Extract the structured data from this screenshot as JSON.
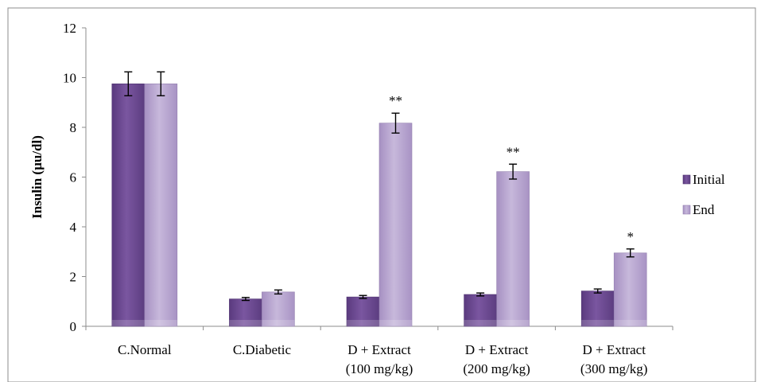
{
  "chart_data": {
    "type": "bar",
    "title": "",
    "xlabel": "",
    "ylabel": "Insulin (µu/dl)",
    "ylim": [
      0,
      12
    ],
    "yticks": [
      0,
      2,
      4,
      6,
      8,
      10,
      12
    ],
    "grid": false,
    "legend_position": "right",
    "categories": [
      [
        "C.Normal"
      ],
      [
        "C.Diabetic"
      ],
      [
        "D + Extract",
        "(100 mg/kg)"
      ],
      [
        "D + Extract",
        "(200 mg/kg)"
      ],
      [
        "D + Extract",
        "(300 mg/kg)"
      ]
    ],
    "series": [
      {
        "name": "Initial",
        "color": "#6E4A92",
        "values": [
          9.75,
          1.1,
          1.18,
          1.28,
          1.42
        ],
        "errors": [
          0.48,
          0.06,
          0.06,
          0.06,
          0.08
        ]
      },
      {
        "name": "End",
        "color": "#B7A5CF",
        "values": [
          9.75,
          1.38,
          8.17,
          6.22,
          2.95
        ],
        "errors": [
          0.48,
          0.08,
          0.4,
          0.3,
          0.16
        ]
      }
    ],
    "annotations": [
      "",
      "",
      "**",
      "**",
      "*"
    ]
  }
}
